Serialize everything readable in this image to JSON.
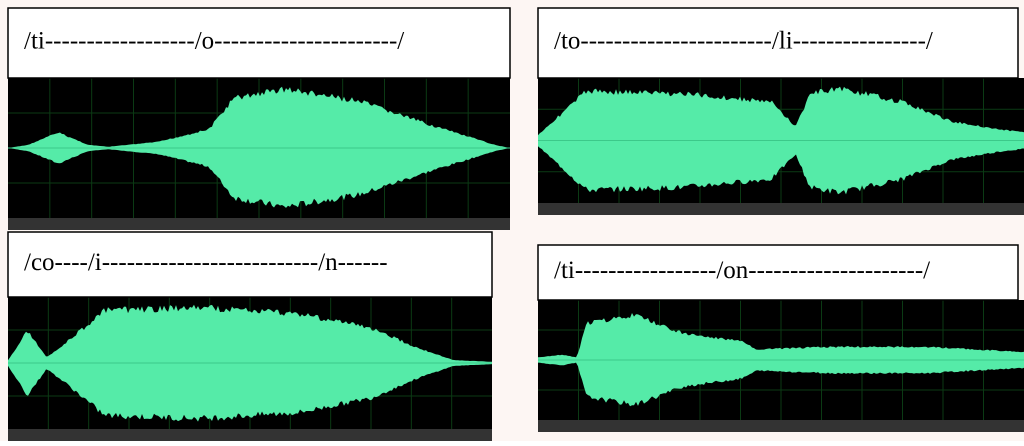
{
  "panels": [
    {
      "label": "/ti------------------/o----------------------/"
    },
    {
      "label": "/to-----------------------/li----------------/"
    },
    {
      "label": "/co----/i--------------------------/n------"
    },
    {
      "label": "/ti-----------------/on---------------------/"
    }
  ]
}
